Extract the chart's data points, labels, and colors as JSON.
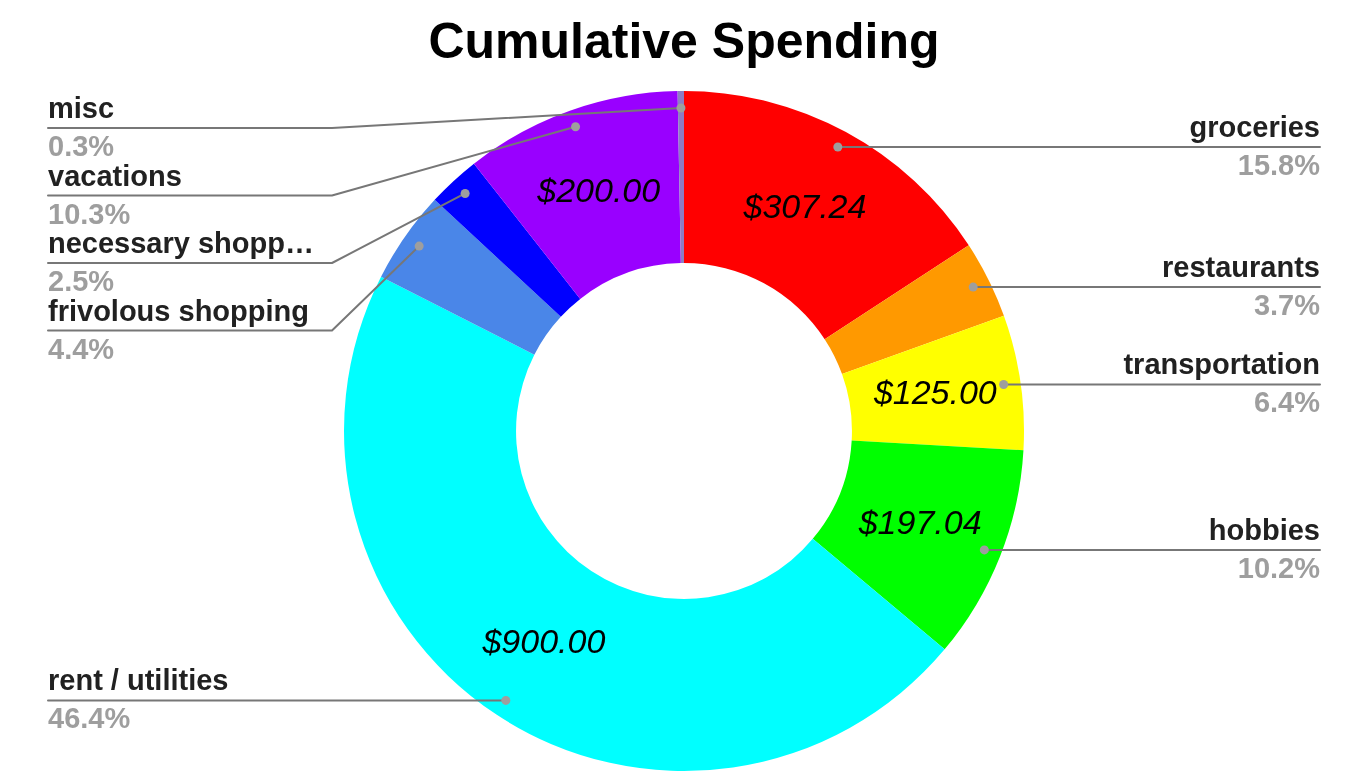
{
  "chart_data": {
    "type": "donut",
    "title": "Cumulative Spending",
    "categories": [
      "groceries",
      "restaurants",
      "transportation",
      "hobbies",
      "rent / utilities",
      "frivolous shopping",
      "necessary shopp…",
      "vacations",
      "misc"
    ],
    "values": [
      15.8,
      3.7,
      6.4,
      10.2,
      46.4,
      4.4,
      2.5,
      10.3,
      0.3
    ],
    "colors": [
      "#ff0000",
      "#ff9900",
      "#ffff00",
      "#00ff00",
      "#00ffff",
      "#4a86e8",
      "#0000ff",
      "#9900ff",
      "#8e7cc3"
    ],
    "value_labels": [
      "15.8%",
      "3.7%",
      "6.4%",
      "10.2%",
      "46.4%",
      "4.4%",
      "2.5%",
      "10.3%",
      "0.3%"
    ],
    "annotations": [
      {
        "text": "$307.24",
        "x": "groceries"
      },
      {
        "text": "$125.00",
        "x": "transportation"
      },
      {
        "text": "$197.04",
        "x": "hobbies"
      },
      {
        "text": "$900.00",
        "x": "rent / utilities"
      },
      {
        "text": "$200.00",
        "x": "vacations"
      }
    ],
    "legend": false
  }
}
